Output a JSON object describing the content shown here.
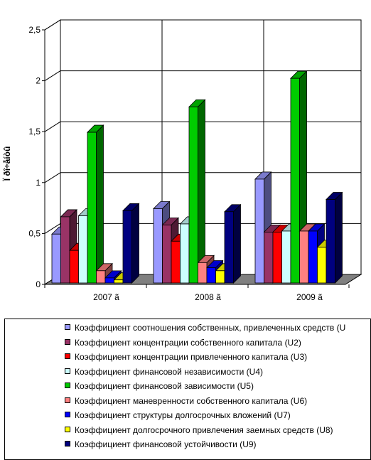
{
  "chart_data": {
    "type": "bar",
    "categories": [
      "2007 ã",
      "2008 ã",
      "2009 ã"
    ],
    "ylabel": "Ï ðî÷åíòû",
    "ylim": [
      0,
      2.5
    ],
    "yticks": [
      "0",
      "0,5",
      "1",
      "1,5",
      "2",
      "2,5"
    ],
    "grid": true,
    "legend": "bottom",
    "three_d": true,
    "series": [
      {
        "name": "Коэффициент соотношения собственных, привлеченных средств (U",
        "color": "#9999ff",
        "values": [
          0.48,
          0.73,
          1.02
        ]
      },
      {
        "name": "Коэффициент концентрации собственного капитала (U2)",
        "color": "#993366",
        "values": [
          0.65,
          0.57,
          0.5
        ]
      },
      {
        "name": "Коэффициент концентрации привлеченного капитала (U3)",
        "color": "#ff0000",
        "values": [
          0.32,
          0.41,
          0.5
        ]
      },
      {
        "name": "Коэффициент финансовой независимости (U4)",
        "color": "#ccffff",
        "values": [
          0.66,
          0.58,
          0.51
        ]
      },
      {
        "name": "Коэффициент финансовой зависимости (U5)",
        "color": "#00cc00",
        "values": [
          1.48,
          1.73,
          2.01
        ]
      },
      {
        "name": "Коэффициент маневренности собственного капитала (U6)",
        "color": "#ff8080",
        "values": [
          0.12,
          0.2,
          0.51
        ]
      },
      {
        "name": "Коэффициент структуры долгосрочных вложений (U7)",
        "color": "#0000ff",
        "values": [
          0.05,
          0.15,
          0.51
        ]
      },
      {
        "name": "Коэффициент долгосрочного привлечения заемных средств (U8)",
        "color": "#ffff00",
        "values": [
          0.03,
          0.12,
          0.35
        ]
      },
      {
        "name": "Коэффициент финансовой устойчивости (U9)",
        "color": "#000080",
        "values": [
          0.71,
          0.7,
          0.82
        ]
      }
    ]
  }
}
